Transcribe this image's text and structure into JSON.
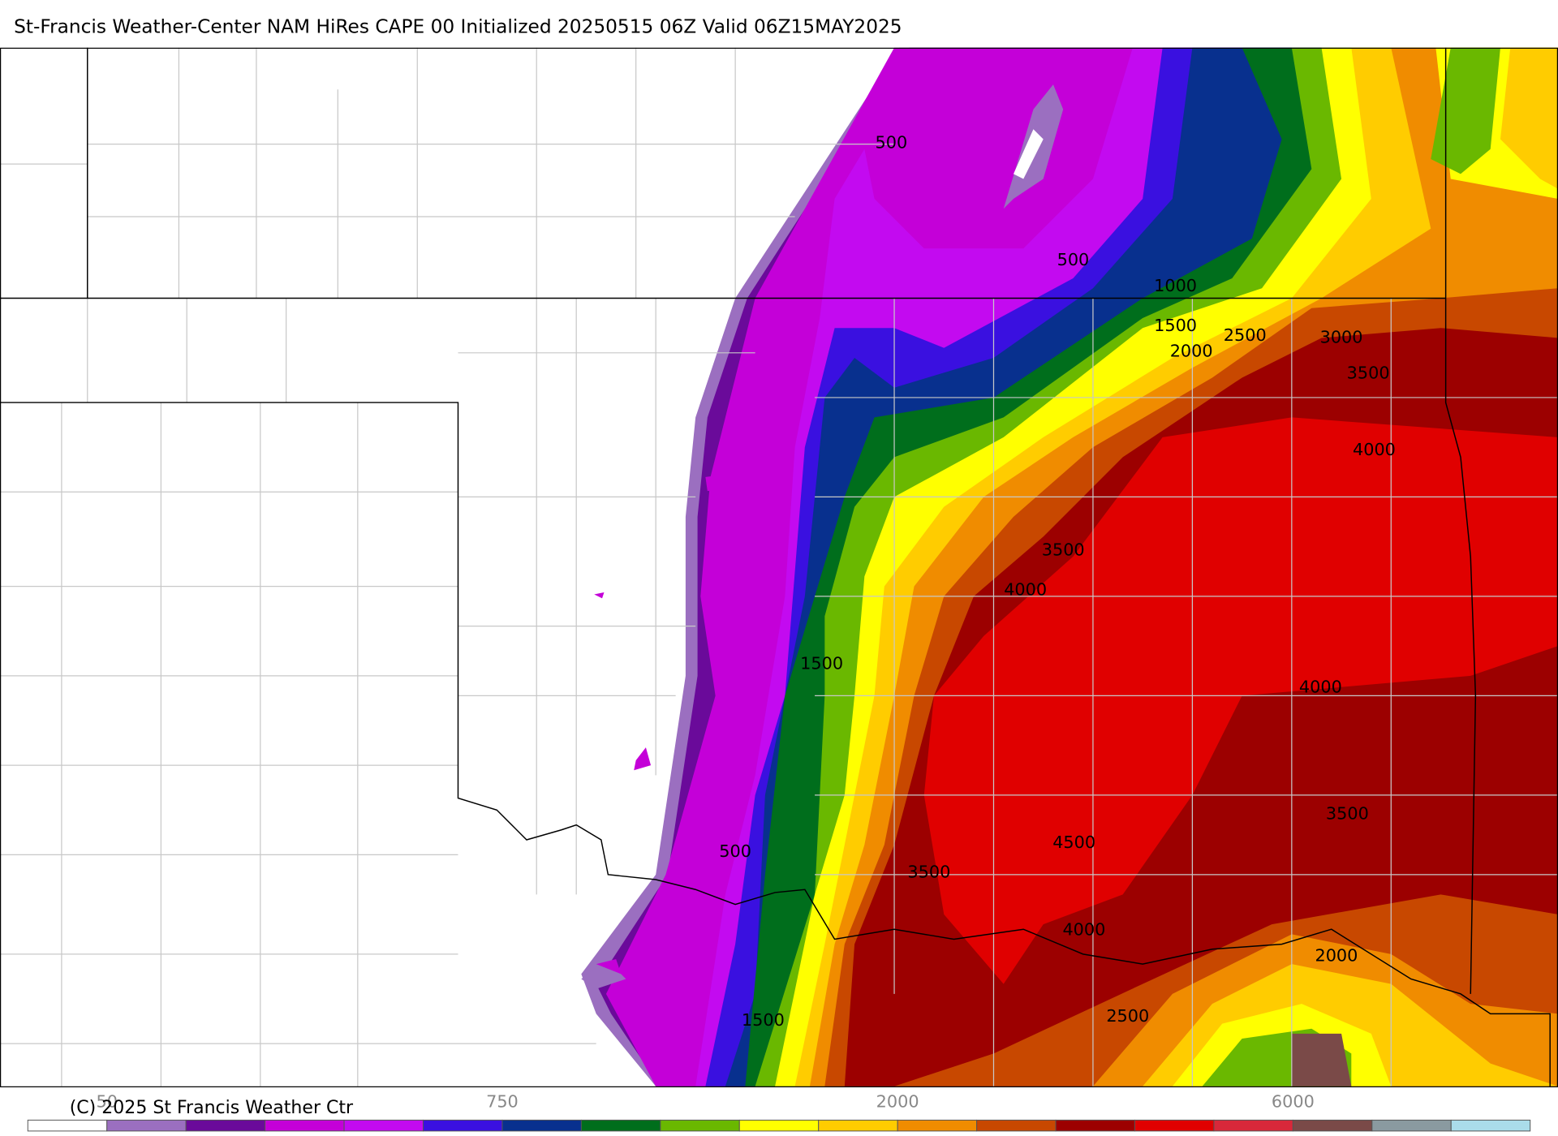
{
  "header": {
    "title": "St-Francis Weather-Center NAM HiRes CAPE  00 Initialized 20250515 06Z Valid 06Z15MAY2025"
  },
  "map": {
    "contour_labels": [
      "500",
      "500",
      "1000",
      "1500",
      "2500",
      "3000",
      "2000",
      "3500",
      "4000",
      "3500",
      "4000",
      "1500",
      "4000",
      "3500",
      "500",
      "4500",
      "3500",
      "4000",
      "2000",
      "2500",
      "1500"
    ]
  },
  "legend": {
    "colors": [
      "#ffffff",
      "#9b6fc0",
      "#6a0a9a",
      "#c400d8",
      "#c30af0",
      "#3a10e0",
      "#08308e",
      "#006e1c",
      "#6ab800",
      "#ffff00",
      "#ffcc00",
      "#f08c00",
      "#c84800",
      "#9c0000",
      "#e00000",
      "#d8283a",
      "#7a4a48",
      "#8a9aa0",
      "#aadcea"
    ],
    "labels": [
      "50",
      "750",
      "2000",
      "6000"
    ]
  },
  "footer": {
    "copyright": "(C) 2025 St Francis Weather Ctr"
  }
}
